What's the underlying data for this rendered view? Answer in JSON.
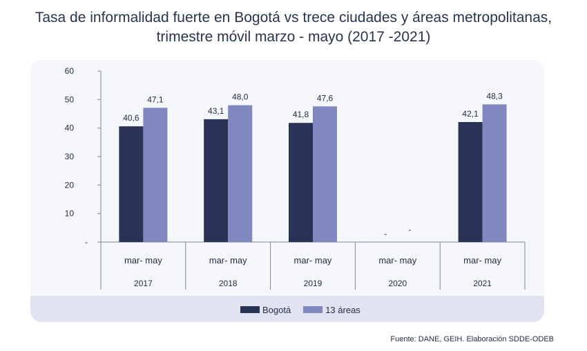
{
  "title": {
    "line1": "Tasa de informalidad fuerte en Bogotá vs trece ciudades y áreas metropolitanas,",
    "line2": "trimestre móvil marzo - mayo (2017 -2021)"
  },
  "chart_data": {
    "type": "bar",
    "title": "Tasa de informalidad fuerte en Bogotá vs trece ciudades y áreas metropolitanas, trimestre móvil marzo - mayo (2017 -2021)",
    "categories": [
      {
        "period": "mar- may",
        "year": "2017"
      },
      {
        "period": "mar- may",
        "year": "2018"
      },
      {
        "period": "mar- may",
        "year": "2019"
      },
      {
        "period": "mar- may",
        "year": "2020"
      },
      {
        "period": "mar- may",
        "year": "2021"
      }
    ],
    "series": [
      {
        "name": "Bogotá",
        "color": "#283355",
        "values": [
          40.6,
          43.1,
          41.8,
          null,
          42.1
        ],
        "labels": [
          "40,6",
          "43,1",
          "41,8",
          "-",
          "42,1"
        ]
      },
      {
        "name": "13 áreas",
        "color": "#8088bf",
        "values": [
          47.1,
          48.0,
          47.6,
          null,
          48.3
        ],
        "labels": [
          "47,1",
          "48,0",
          "47,6",
          "-",
          "48,3"
        ]
      }
    ],
    "ylim": [
      0,
      60
    ],
    "yticks": [
      {
        "value": 0,
        "label": "-"
      },
      {
        "value": 10,
        "label": "10"
      },
      {
        "value": 20,
        "label": "20"
      },
      {
        "value": 30,
        "label": "30"
      },
      {
        "value": 40,
        "label": "40"
      },
      {
        "value": 50,
        "label": "50"
      },
      {
        "value": 60,
        "label": "60"
      }
    ],
    "xlabel": "",
    "ylabel": "",
    "legend_position": "bottom"
  },
  "source": "Fuente: DANE, GEIH. Elaboración SDDE-ODEB"
}
